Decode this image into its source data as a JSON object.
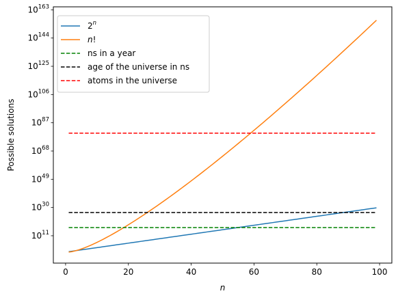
{
  "chart_data": {
    "type": "line",
    "title": "",
    "xlabel": "n",
    "ylabel": "Possible solutions",
    "xlim": [
      -3.9,
      103.9
    ],
    "ylim_log10": [
      -7.4,
      165
    ],
    "yscale": "log",
    "x_ticks": [
      0,
      20,
      40,
      60,
      80,
      100
    ],
    "y_ticks": [
      {
        "base": "10",
        "exp": "11",
        "log10": 11
      },
      {
        "base": "10",
        "exp": "30",
        "log10": 30
      },
      {
        "base": "10",
        "exp": "49",
        "log10": 49
      },
      {
        "base": "10",
        "exp": "68",
        "log10": 68
      },
      {
        "base": "10",
        "exp": "87",
        "log10": 87
      },
      {
        "base": "10",
        "exp": "106",
        "log10": 106
      },
      {
        "base": "10",
        "exp": "125",
        "log10": 125
      },
      {
        "base": "10",
        "exp": "144",
        "log10": 144
      },
      {
        "base": "10",
        "exp": "163",
        "log10": 163
      }
    ],
    "grid": false,
    "legend_position": "top-left",
    "series": [
      {
        "name": "2",
        "name_sup": "n",
        "style": "solid",
        "color": "#1f77b4",
        "formula": "2^n",
        "x": [
          1,
          99
        ],
        "y_log10": [
          0.301,
          29.8
        ]
      },
      {
        "name": "n",
        "name_suffix": "!",
        "style": "solid",
        "color": "#ff7f0e",
        "formula": "n!",
        "x": [
          1,
          99
        ],
        "y_log10": [
          0,
          155.97
        ]
      },
      {
        "name": "ns in a year",
        "style": "dashed",
        "color": "#008000",
        "x": [
          1,
          99
        ],
        "y_log10": [
          16.5,
          16.5
        ]
      },
      {
        "name": "age of the universe in ns",
        "style": "dashed",
        "color": "#000000",
        "x": [
          1,
          99
        ],
        "y_log10": [
          26.64,
          26.64
        ]
      },
      {
        "name": "atoms in the universe",
        "style": "dashed",
        "color": "#ff0000",
        "x": [
          1,
          99
        ],
        "y_log10": [
          80,
          80
        ]
      }
    ]
  }
}
